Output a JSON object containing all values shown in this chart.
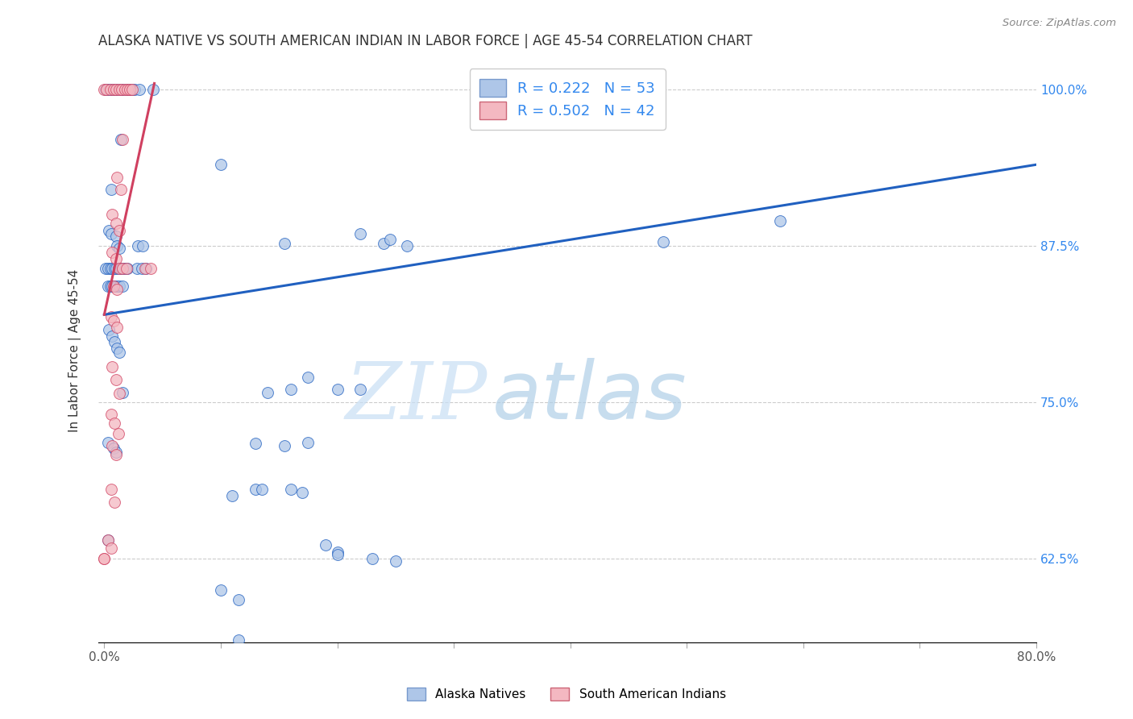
{
  "title": "ALASKA NATIVE VS SOUTH AMERICAN INDIAN IN LABOR FORCE | AGE 45-54 CORRELATION CHART",
  "source": "Source: ZipAtlas.com",
  "ylabel": "In Labor Force | Age 45-54",
  "xaxis_ticks": [
    0.0,
    0.1,
    0.2,
    0.3,
    0.4,
    0.5,
    0.6,
    0.7,
    0.8
  ],
  "xaxis_labels": [
    "0.0%",
    "",
    "",
    "",
    "",
    "",
    "",
    "",
    "80.0%"
  ],
  "yaxis_ticks": [
    0.625,
    0.75,
    0.875,
    1.0
  ],
  "yaxis_labels": [
    "62.5%",
    "75.0%",
    "87.5%",
    "100.0%"
  ],
  "xlim": [
    -0.005,
    0.8
  ],
  "ylim": [
    0.558,
    1.025
  ],
  "legend_color1": "#aec6e8",
  "legend_color2": "#f4b8c1",
  "scatter_color_blue": "#aec6e8",
  "scatter_color_pink": "#f4b8c1",
  "line_color_blue": "#2060c0",
  "line_color_pink": "#d04060",
  "watermark_zip": "ZIP",
  "watermark_atlas": "atlas",
  "legend_label1": "Alaska Natives",
  "legend_label2": "South American Indians",
  "legend_r1_r": "R = 0.222",
  "legend_r1_n": "N = 53",
  "legend_r2_r": "R = 0.502",
  "legend_r2_n": "N = 42",
  "blue_points": [
    [
      0.001,
      1.0
    ],
    [
      0.004,
      1.0
    ],
    [
      0.006,
      1.0
    ],
    [
      0.009,
      1.0
    ],
    [
      0.011,
      1.0
    ],
    [
      0.014,
      1.0
    ],
    [
      0.016,
      1.0
    ],
    [
      0.019,
      1.0
    ],
    [
      0.021,
      1.0
    ],
    [
      0.024,
      1.0
    ],
    [
      0.026,
      1.0
    ],
    [
      0.014,
      0.96
    ],
    [
      0.006,
      0.92
    ],
    [
      0.004,
      0.887
    ],
    [
      0.006,
      0.885
    ],
    [
      0.01,
      0.883
    ],
    [
      0.011,
      0.875
    ],
    [
      0.013,
      0.873
    ],
    [
      0.001,
      0.857
    ],
    [
      0.003,
      0.857
    ],
    [
      0.005,
      0.857
    ],
    [
      0.007,
      0.857
    ],
    [
      0.009,
      0.857
    ],
    [
      0.01,
      0.857
    ],
    [
      0.012,
      0.857
    ],
    [
      0.014,
      0.857
    ],
    [
      0.016,
      0.857
    ],
    [
      0.018,
      0.857
    ],
    [
      0.02,
      0.857
    ],
    [
      0.003,
      0.843
    ],
    [
      0.005,
      0.843
    ],
    [
      0.007,
      0.843
    ],
    [
      0.009,
      0.843
    ],
    [
      0.011,
      0.843
    ],
    [
      0.013,
      0.843
    ],
    [
      0.016,
      0.843
    ],
    [
      0.004,
      0.808
    ],
    [
      0.007,
      0.803
    ],
    [
      0.009,
      0.798
    ],
    [
      0.011,
      0.793
    ],
    [
      0.013,
      0.79
    ],
    [
      0.016,
      0.758
    ],
    [
      0.003,
      0.718
    ],
    [
      0.008,
      0.713
    ],
    [
      0.01,
      0.71
    ],
    [
      0.003,
      0.64
    ],
    [
      0.03,
      1.0
    ],
    [
      0.042,
      1.0
    ],
    [
      0.029,
      0.875
    ],
    [
      0.033,
      0.875
    ],
    [
      0.028,
      0.857
    ],
    [
      0.032,
      0.857
    ],
    [
      0.036,
      0.857
    ]
  ],
  "pink_points": [
    [
      0.0,
      1.0
    ],
    [
      0.002,
      1.0
    ],
    [
      0.005,
      1.0
    ],
    [
      0.008,
      1.0
    ],
    [
      0.01,
      1.0
    ],
    [
      0.013,
      1.0
    ],
    [
      0.015,
      1.0
    ],
    [
      0.018,
      1.0
    ],
    [
      0.02,
      1.0
    ],
    [
      0.022,
      1.0
    ],
    [
      0.024,
      1.0
    ],
    [
      0.016,
      0.96
    ],
    [
      0.011,
      0.93
    ],
    [
      0.014,
      0.92
    ],
    [
      0.007,
      0.9
    ],
    [
      0.01,
      0.893
    ],
    [
      0.013,
      0.887
    ],
    [
      0.007,
      0.87
    ],
    [
      0.01,
      0.865
    ],
    [
      0.013,
      0.857
    ],
    [
      0.016,
      0.857
    ],
    [
      0.019,
      0.857
    ],
    [
      0.008,
      0.843
    ],
    [
      0.011,
      0.84
    ],
    [
      0.006,
      0.818
    ],
    [
      0.008,
      0.815
    ],
    [
      0.011,
      0.81
    ],
    [
      0.007,
      0.778
    ],
    [
      0.01,
      0.768
    ],
    [
      0.013,
      0.757
    ],
    [
      0.006,
      0.74
    ],
    [
      0.009,
      0.733
    ],
    [
      0.012,
      0.725
    ],
    [
      0.007,
      0.715
    ],
    [
      0.01,
      0.708
    ],
    [
      0.006,
      0.68
    ],
    [
      0.009,
      0.67
    ],
    [
      0.003,
      0.64
    ],
    [
      0.006,
      0.633
    ],
    [
      0.0,
      0.625
    ],
    [
      0.035,
      0.857
    ],
    [
      0.04,
      0.857
    ]
  ],
  "blue_line_x": [
    0.0,
    0.8
  ],
  "blue_line_y": [
    0.82,
    0.94
  ],
  "pink_line_x": [
    0.0,
    0.043
  ],
  "pink_line_y": [
    0.82,
    1.005
  ],
  "blue_outliers": [
    [
      0.1,
      0.94
    ],
    [
      0.155,
      0.877
    ],
    [
      0.22,
      0.885
    ],
    [
      0.24,
      0.877
    ],
    [
      0.245,
      0.88
    ],
    [
      0.26,
      0.875
    ],
    [
      0.14,
      0.758
    ],
    [
      0.16,
      0.76
    ],
    [
      0.175,
      0.77
    ],
    [
      0.2,
      0.76
    ],
    [
      0.22,
      0.76
    ],
    [
      0.13,
      0.717
    ],
    [
      0.155,
      0.715
    ],
    [
      0.175,
      0.718
    ],
    [
      0.11,
      0.675
    ],
    [
      0.13,
      0.68
    ],
    [
      0.135,
      0.68
    ],
    [
      0.16,
      0.68
    ],
    [
      0.17,
      0.678
    ],
    [
      0.19,
      0.636
    ],
    [
      0.2,
      0.63
    ],
    [
      0.2,
      0.628
    ],
    [
      0.23,
      0.625
    ],
    [
      0.25,
      0.623
    ],
    [
      0.1,
      0.6
    ],
    [
      0.115,
      0.592
    ],
    [
      0.115,
      0.56
    ],
    [
      0.48,
      0.878
    ],
    [
      0.58,
      0.895
    ]
  ],
  "pink_outlier": [
    0.0,
    0.625
  ]
}
